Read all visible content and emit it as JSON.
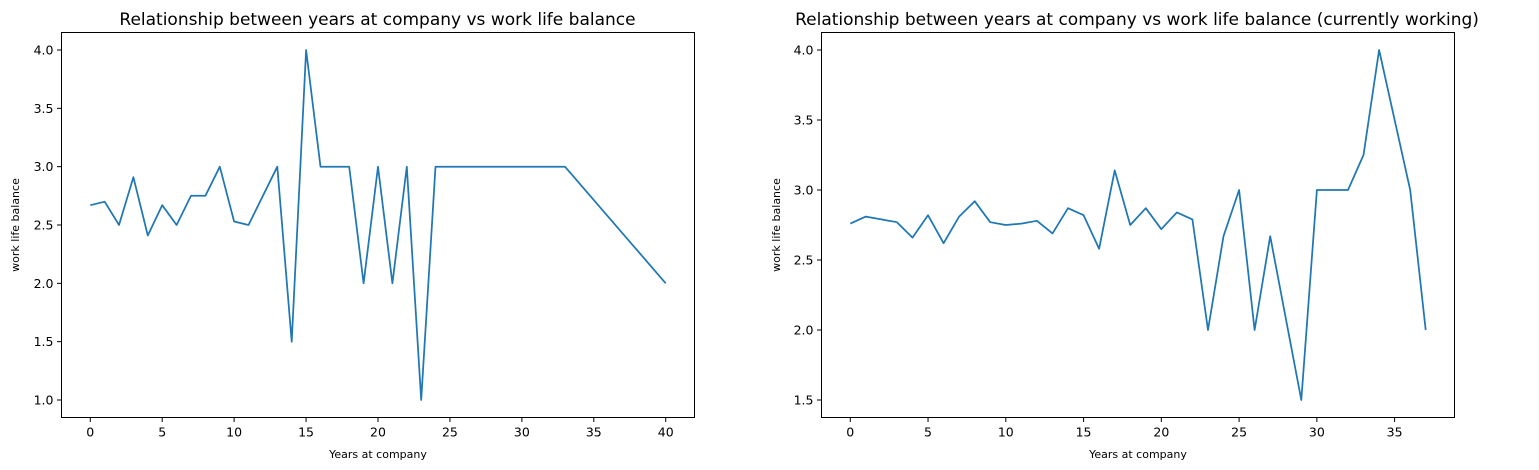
{
  "chart_data": [
    {
      "type": "line",
      "title": "Relationship between years at company vs work life balance",
      "xlabel": "Years at company",
      "ylabel": "work life balance",
      "xlim": [
        -2,
        42
      ],
      "ylim": [
        0.85,
        4.15
      ],
      "xticks": [
        0,
        5,
        10,
        15,
        20,
        25,
        30,
        35,
        40
      ],
      "yticks": [
        1.0,
        1.5,
        2.0,
        2.5,
        3.0,
        3.5,
        4.0
      ],
      "ytick_labels": [
        "1.0",
        "1.5",
        "2.0",
        "2.5",
        "3.0",
        "3.5",
        "4.0"
      ],
      "grid": false,
      "legend": false,
      "color": "#1f77b4",
      "x": [
        0,
        1,
        2,
        3,
        4,
        5,
        6,
        7,
        8,
        9,
        10,
        11,
        13,
        14,
        15,
        16,
        17,
        18,
        19,
        20,
        21,
        22,
        23,
        24,
        33,
        40
      ],
      "y": [
        2.67,
        2.7,
        2.5,
        2.91,
        2.41,
        2.67,
        2.5,
        2.75,
        2.75,
        3.0,
        2.53,
        2.5,
        3.0,
        1.5,
        4.0,
        3.0,
        3.0,
        3.0,
        2.0,
        3.0,
        2.0,
        3.0,
        1.0,
        3.0,
        3.0,
        2.0
      ]
    },
    {
      "type": "line",
      "title": "Relationship between years at company vs work life balance (currently working)",
      "xlabel": "Years at company",
      "ylabel": "work life balance",
      "xlim": [
        -1.85,
        38.85
      ],
      "ylim": [
        1.375,
        4.125
      ],
      "xticks": [
        0,
        5,
        10,
        15,
        20,
        25,
        30,
        35
      ],
      "yticks": [
        1.5,
        2.0,
        2.5,
        3.0,
        3.5,
        4.0
      ],
      "ytick_labels": [
        "1.5",
        "2.0",
        "2.5",
        "3.0",
        "3.5",
        "4.0"
      ],
      "grid": false,
      "legend": false,
      "color": "#1f77b4",
      "x": [
        0,
        1,
        2,
        3,
        4,
        5,
        6,
        7,
        8,
        9,
        10,
        11,
        12,
        13,
        14,
        15,
        16,
        17,
        18,
        19,
        20,
        21,
        22,
        23,
        24,
        25,
        26,
        27,
        29,
        30,
        31,
        32,
        33,
        34,
        36,
        37
      ],
      "y": [
        2.76,
        2.81,
        2.79,
        2.77,
        2.66,
        2.82,
        2.62,
        2.81,
        2.92,
        2.77,
        2.75,
        2.76,
        2.78,
        2.69,
        2.87,
        2.82,
        2.58,
        3.14,
        2.75,
        2.87,
        2.72,
        2.84,
        2.79,
        2.0,
        2.67,
        3.0,
        2.0,
        2.67,
        1.5,
        3.0,
        3.0,
        3.0,
        3.25,
        4.0,
        3.0,
        2.0
      ]
    }
  ]
}
